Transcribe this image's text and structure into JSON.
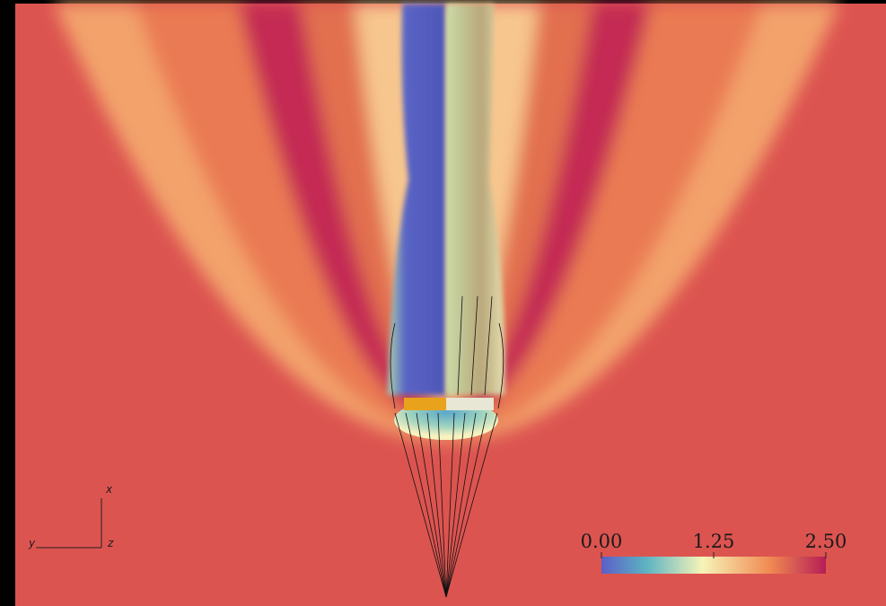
{
  "colorbar": {
    "range": [
      0,
      2.5
    ],
    "ticks": [
      {
        "value": 0,
        "label": "0.00"
      },
      {
        "value": 1.25,
        "label": "1.25"
      },
      {
        "value": 2.5,
        "label": "2.50"
      }
    ]
  },
  "axes_triad": {
    "x": "x",
    "y": "y",
    "z": "z"
  }
}
